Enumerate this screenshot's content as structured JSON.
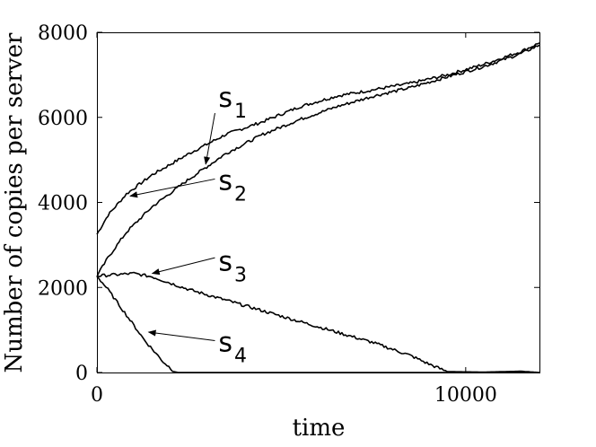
{
  "chart_data": {
    "type": "line",
    "xlabel": "time",
    "ylabel": "Number of copies per server",
    "xlim": [
      0,
      12000
    ],
    "ylim": [
      0,
      8000
    ],
    "xticks": [
      0,
      10000
    ],
    "xtick_labels": [
      "0",
      "10000"
    ],
    "yticks": [
      0,
      2000,
      4000,
      6000,
      8000
    ],
    "ytick_labels": [
      "0",
      "2000",
      "4000",
      "6000",
      "8000"
    ],
    "grid": false,
    "series": [
      {
        "name": "s1",
        "x": [
          0,
          300,
          800,
          1500,
          2500,
          3500,
          4500,
          5500,
          6500,
          7500,
          8500,
          9500,
          10500,
          11500,
          12000
        ],
        "y": [
          3250,
          3700,
          4200,
          4650,
          5150,
          5600,
          5900,
          6250,
          6500,
          6650,
          6800,
          7000,
          7250,
          7550,
          7750
        ]
      },
      {
        "name": "s2",
        "x": [
          0,
          300,
          800,
          1500,
          2500,
          3500,
          4500,
          5500,
          6500,
          7500,
          8500,
          9500,
          10500,
          11500,
          12000
        ],
        "y": [
          2270,
          2700,
          3300,
          3900,
          4550,
          5150,
          5600,
          5950,
          6250,
          6500,
          6700,
          6950,
          7200,
          7500,
          7700
        ]
      },
      {
        "name": "s3",
        "x": [
          0,
          500,
          1000,
          1500,
          2500,
          3500,
          4500,
          5500,
          6500,
          7500,
          8500,
          9000,
          9500,
          10500,
          11500,
          12000
        ],
        "y": [
          2270,
          2300,
          2330,
          2250,
          1950,
          1700,
          1450,
          1200,
          950,
          700,
          400,
          200,
          20,
          10,
          30,
          0
        ]
      },
      {
        "name": "s4",
        "x": [
          0,
          300,
          800,
          1300,
          1800,
          2100,
          2200,
          4000,
          8000,
          12000
        ],
        "y": [
          2270,
          1950,
          1350,
          750,
          250,
          20,
          0,
          0,
          0,
          0
        ]
      }
    ],
    "annotations": [
      {
        "label": "s",
        "sub": "1",
        "series": "s1"
      },
      {
        "label": "s",
        "sub": "2",
        "series": "s2"
      },
      {
        "label": "s",
        "sub": "3",
        "series": "s3"
      },
      {
        "label": "s",
        "sub": "4",
        "series": "s4"
      }
    ]
  }
}
